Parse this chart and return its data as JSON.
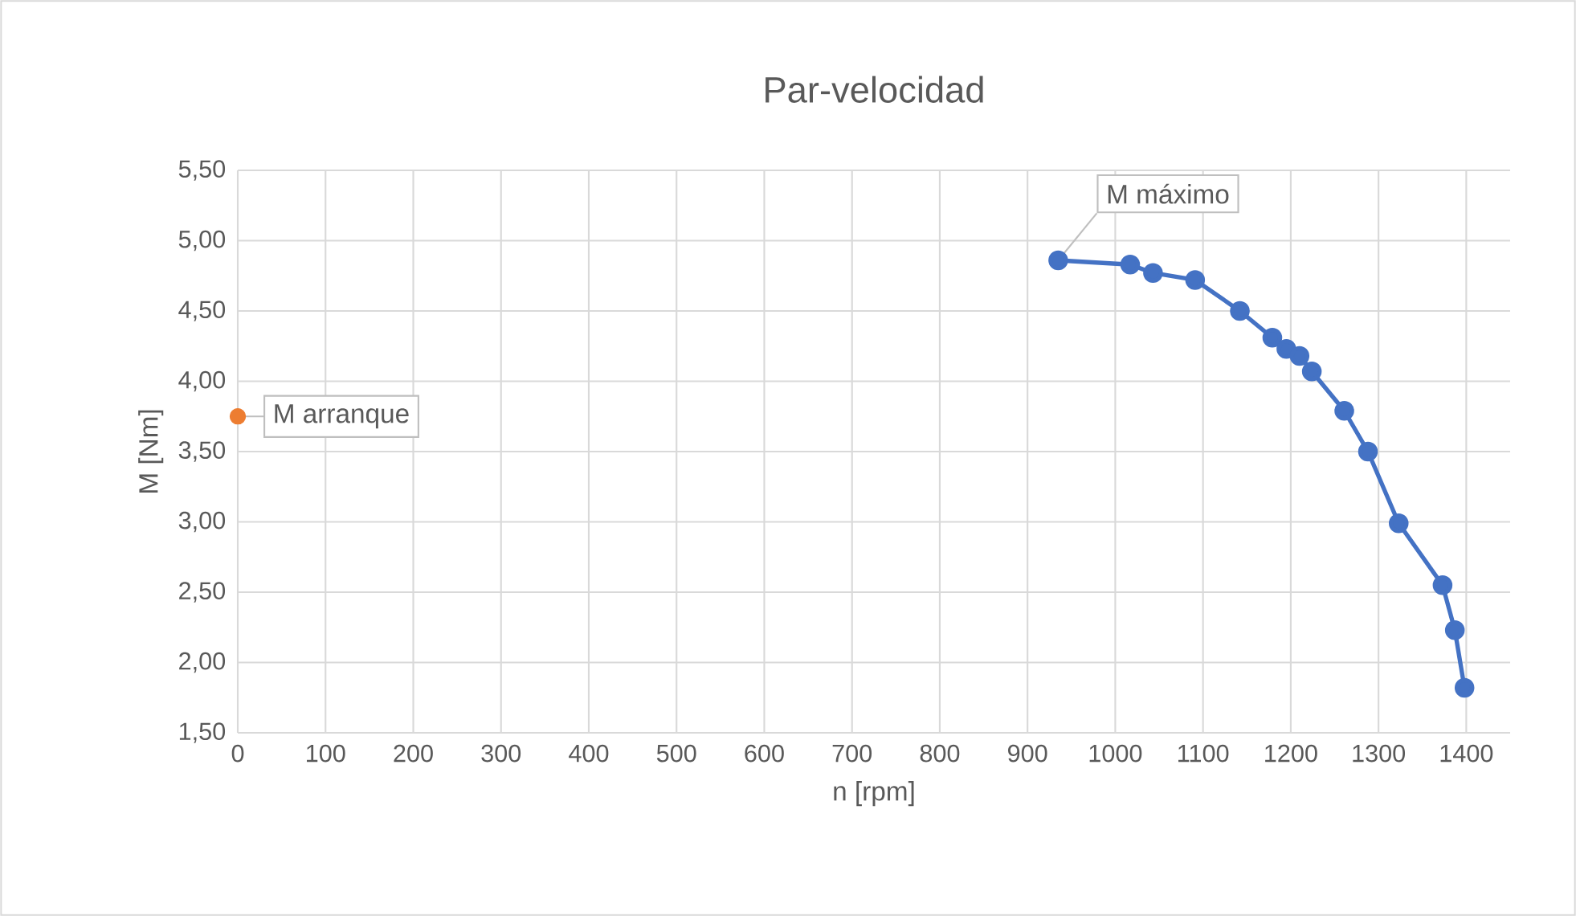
{
  "chart_data": {
    "type": "line",
    "title": "Par-velocidad",
    "xlabel": "n [rpm]",
    "ylabel": "M [Nm]",
    "xlim": [
      0,
      1450
    ],
    "xticks": [
      0,
      100,
      200,
      300,
      400,
      500,
      600,
      700,
      800,
      900,
      1000,
      1100,
      1200,
      1300,
      1400
    ],
    "ylim": [
      1.5,
      5.5
    ],
    "yticks": [
      {
        "value": 1.5,
        "label": "1,50"
      },
      {
        "value": 2.0,
        "label": "2,00"
      },
      {
        "value": 2.5,
        "label": "2,50"
      },
      {
        "value": 3.0,
        "label": "3,00"
      },
      {
        "value": 3.5,
        "label": "3,50"
      },
      {
        "value": 4.0,
        "label": "4,00"
      },
      {
        "value": 4.5,
        "label": "4,50"
      },
      {
        "value": 5.0,
        "label": "5,00"
      },
      {
        "value": 5.5,
        "label": "5,50"
      }
    ],
    "grid": true,
    "marker": "circle",
    "series": [
      {
        "color": "#4472c4",
        "x": [
          935,
          1017,
          1043,
          1091,
          1142,
          1179,
          1195,
          1210,
          1224,
          1261,
          1288,
          1323,
          1373,
          1387,
          1398
        ],
        "values": [
          4.86,
          4.83,
          4.77,
          4.72,
          4.5,
          4.31,
          4.23,
          4.18,
          4.07,
          3.79,
          3.5,
          2.99,
          2.55,
          2.23,
          1.82
        ]
      },
      {
        "type": "scatter",
        "color": "#ed7d31",
        "x": [
          0
        ],
        "values": [
          3.75
        ]
      }
    ],
    "annotations": [
      {
        "text": "M máximo",
        "x": 935,
        "y": 4.86
      },
      {
        "text": "M arranque",
        "x": 0,
        "y": 3.75
      }
    ]
  }
}
